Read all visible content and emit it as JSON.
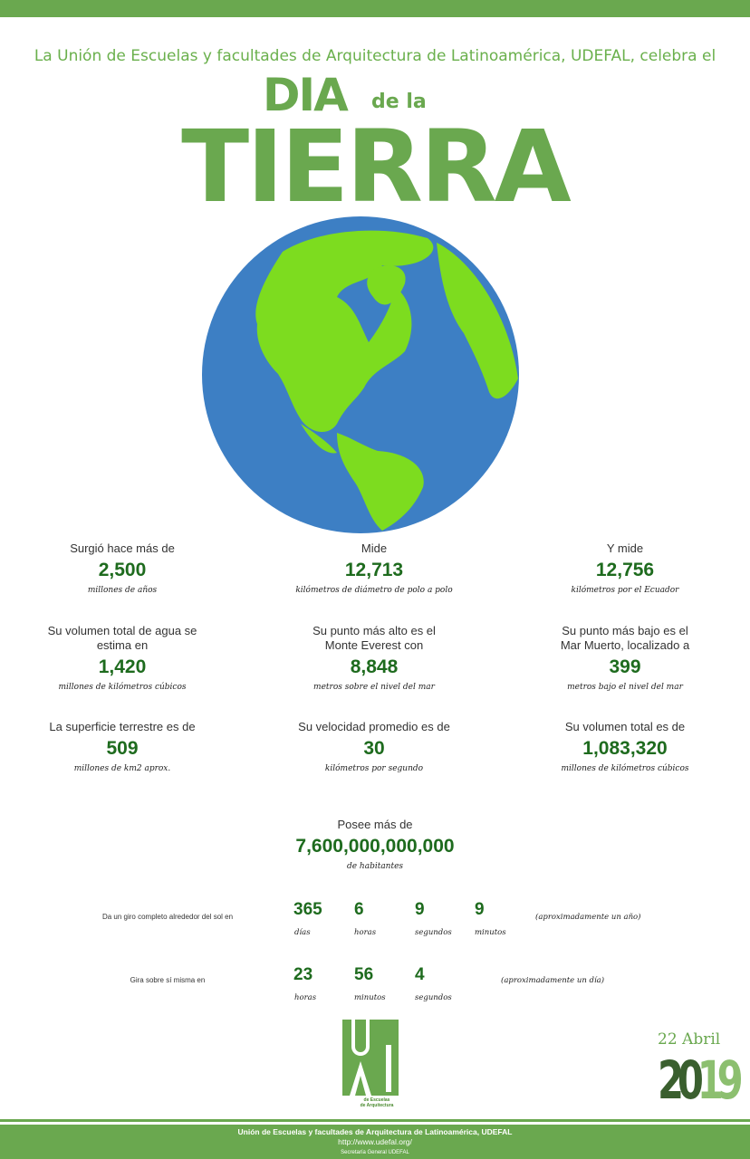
{
  "header": {
    "intro": "La Unión de Escuelas y facultades de Arquitectura de Latinoamérica, UDEFAL, celebra el",
    "dia": "DIA",
    "de_la": "de la",
    "tierra": "TIERRA"
  },
  "colors": {
    "brand_green": "#6aa84f",
    "number_green": "#1e6b1e",
    "ocean": "#3d7fc4",
    "land": "#7ddc1f"
  },
  "globe": {
    "icon": "earth-globe-icon"
  },
  "stats": [
    {
      "label": "Surgió hace más de",
      "value": "2,500",
      "unit": "millones de años"
    },
    {
      "label": "Mide",
      "value": "12,713",
      "unit": "kilómetros de diámetro de polo a polo"
    },
    {
      "label": "Y mide",
      "value": "12,756",
      "unit": "kilómetros por el Ecuador"
    },
    {
      "label": "Su volumen total de agua se estima en",
      "value": "1,420",
      "unit": "millones de kilómetros cúbicos"
    },
    {
      "label": "Su punto más alto es el Monte Everest con",
      "value": "8,848",
      "unit": "metros sobre el nivel del mar"
    },
    {
      "label": "Su punto más bajo es el Mar Muerto, localizado a",
      "value": "399",
      "unit": "metros bajo el nivel del mar"
    },
    {
      "label": "La superficie terrestre es de",
      "value": "509",
      "unit": "millones de km2 aprox."
    },
    {
      "label": "Su velocidad promedio es de",
      "value": "30",
      "unit": "kilómetros por segundo"
    },
    {
      "label": "Su volumen total es de",
      "value": "1,083,320",
      "unit": "millones de kilómetros cúbicos"
    }
  ],
  "population": {
    "label": "Posee más de",
    "value": "7,600,000,000,000",
    "unit": "de habitantes"
  },
  "orbit": {
    "label": "Da un giro completo alrededor del sol en",
    "items": [
      {
        "value": "365",
        "unit": "días"
      },
      {
        "value": "6",
        "unit": "horas"
      },
      {
        "value": "9",
        "unit": "segundos"
      },
      {
        "value": "9",
        "unit": "minutos"
      }
    ],
    "note": "(aproximadamente un año)"
  },
  "rotation": {
    "label": "Gira sobre sí misma en",
    "items": [
      {
        "value": "23",
        "unit": "horas"
      },
      {
        "value": "56",
        "unit": "minutos"
      },
      {
        "value": "4",
        "unit": "segundos"
      }
    ],
    "note": "(aproximadamente un día)"
  },
  "logo": {
    "letters": "UDEFAL",
    "caption": "Unión de Escuelas y Facultades de Arquitectura de Latinoamérica"
  },
  "date": {
    "day": "22 Abril",
    "year_a": "20",
    "year_b": "19"
  },
  "footer": {
    "line1": "Unión de Escuelas y facultades de Arquitectura de Latinoamérica,  UDEFAL",
    "url": "http://www.udefal.org/",
    "line3": "Secretaría  General  UDEFAL"
  }
}
